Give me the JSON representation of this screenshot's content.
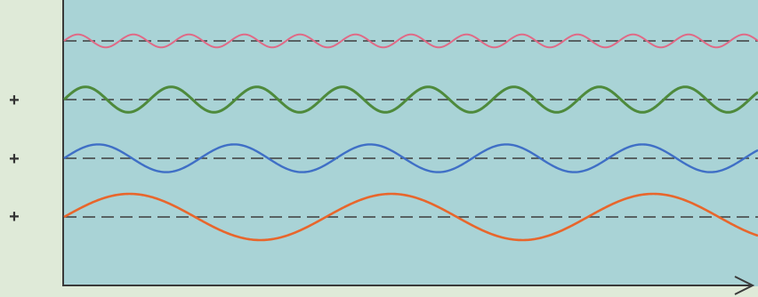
{
  "colors": {
    "page_background": "#dfead8",
    "plot_background": "#a9d3d6",
    "axis": "#3a3a3a",
    "baseline": "#3d3d3d",
    "plus_sign": "#333333"
  },
  "operators": [
    "+",
    "+",
    "+"
  ],
  "x_axis": {
    "arrow": true
  },
  "waves": [
    {
      "id": "wave-pink",
      "color": "#e06a86",
      "amplitude": 0.28,
      "cycles": 12.5,
      "phase": 0.0,
      "stroke": 2.0
    },
    {
      "id": "wave-green",
      "color": "#4e8a3c",
      "amplitude": 0.55,
      "cycles": 8.1,
      "phase": 0.0,
      "stroke": 3.0
    },
    {
      "id": "wave-blue",
      "color": "#3f6fc6",
      "amplitude": 0.6,
      "cycles": 5.1,
      "phase": 0.0,
      "stroke": 2.4
    },
    {
      "id": "wave-orange",
      "color": "#e8662c",
      "amplitude": 1.0,
      "cycles": 2.65,
      "phase": 0.0,
      "stroke": 2.6
    }
  ]
}
